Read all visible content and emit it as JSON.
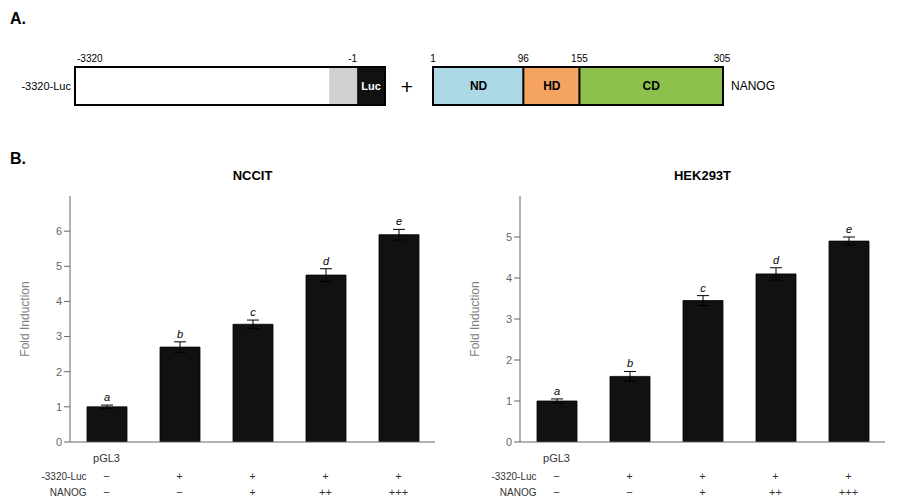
{
  "panel_labels": [
    "A.",
    "B."
  ],
  "diagram": {
    "construct": {
      "label": "-3320-Luc",
      "left_label": "-3320",
      "right_label": "-1",
      "reporter": "Luc"
    },
    "joiner": "+",
    "domains": [
      {
        "label": "ND",
        "color": "#add8e6",
        "start": 1,
        "end": 96
      },
      {
        "label": "HD",
        "color": "#f4a460",
        "start": 96,
        "end": 155
      },
      {
        "label": "CD",
        "color": "#8dc04a",
        "start": 155,
        "end": 305
      }
    ],
    "positions": [
      1,
      96,
      155,
      305
    ],
    "label": "NANOG"
  },
  "chart_data": [
    {
      "type": "bar",
      "title": "NCCIT",
      "ylabel": "Fold Induction",
      "categories": [
        "pGL3",
        null,
        null,
        null,
        null
      ],
      "values": [
        1.0,
        2.7,
        3.35,
        4.75,
        5.9
      ],
      "errors": [
        0.05,
        0.15,
        0.12,
        0.18,
        0.15
      ],
      "color": "#111111",
      "annotations": [
        "a",
        "b",
        "c",
        "d",
        "e"
      ],
      "table": [
        {
          "label": "-3320-Luc",
          "values": [
            "−",
            "+",
            "+",
            "+",
            "+"
          ]
        },
        {
          "label": "NANOG",
          "values": [
            "−",
            "−",
            "+",
            "++",
            "+++"
          ]
        }
      ],
      "ylim": [
        0,
        7
      ],
      "yticks": [
        0,
        1,
        2,
        3,
        4,
        5,
        6
      ],
      "grid": false
    },
    {
      "type": "bar",
      "title": "HEK293T",
      "ylabel": "Fold Induction",
      "categories": [
        "pGL3",
        null,
        null,
        null,
        null
      ],
      "values": [
        1.0,
        1.6,
        3.45,
        4.1,
        4.9
      ],
      "errors": [
        0.05,
        0.12,
        0.12,
        0.15,
        0.1
      ],
      "color": "#111111",
      "annotations": [
        "a",
        "b",
        "c",
        "d",
        "e"
      ],
      "table": [
        {
          "label": "-3320-Luc",
          "values": [
            "−",
            "+",
            "+",
            "+",
            "+"
          ]
        },
        {
          "label": "NANOG",
          "values": [
            "−",
            "−",
            "+",
            "++",
            "+++"
          ]
        }
      ],
      "ylim": [
        0,
        6
      ],
      "yticks": [
        0,
        1,
        2,
        3,
        4,
        5
      ],
      "grid": false
    }
  ]
}
